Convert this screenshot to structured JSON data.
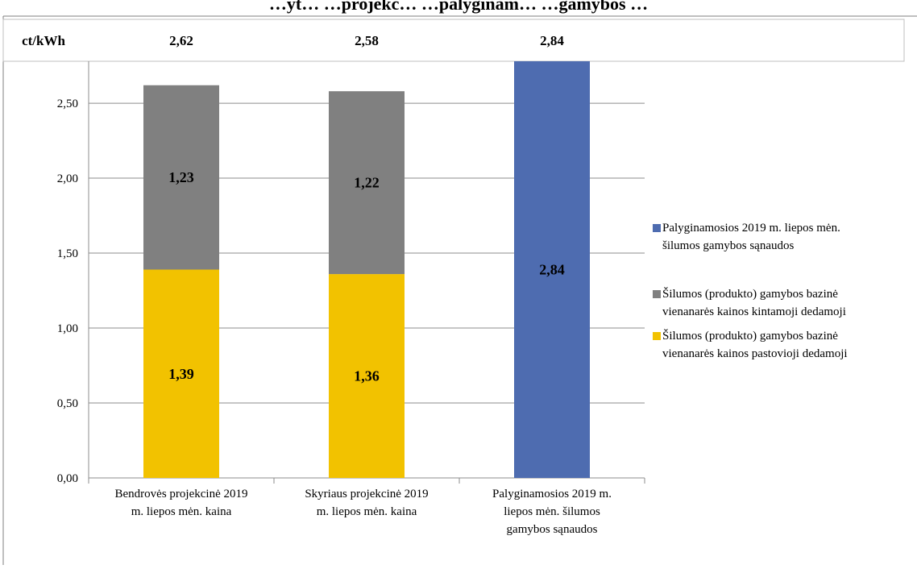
{
  "chart_data": {
    "type": "bar",
    "stacked": true,
    "title": "…yt… …projekc… …palyginam… …gamybos …",
    "unit_label": "ct/kWh",
    "totals": [
      "2,62",
      "2,58",
      "2,84"
    ],
    "categories": [
      [
        "Bendrovės projekcinė 2019",
        "m. liepos mėn. kaina"
      ],
      [
        "Skyriaus projekcinė 2019",
        "m. liepos mėn. kaina"
      ],
      [
        "Palyginamosios 2019 m.",
        "liepos mėn. šilumos",
        "gamybos sąnaudos"
      ]
    ],
    "series": [
      {
        "name": "Šilumos (produkto) gamybos bazinė vienanarės kainos pastovioji dedamoji",
        "legend_lines": [
          "Šilumos (produkto) gamybos bazinė",
          "vienanarės kainos pastovioji dedamoji"
        ],
        "color": "#F2C200",
        "values": [
          1.39,
          1.36,
          null
        ],
        "labels": [
          "1,39",
          "1,36",
          ""
        ]
      },
      {
        "name": "Šilumos (produkto) gamybos bazinė vienanarės kainos kintamoji dedamoji",
        "legend_lines": [
          "Šilumos (produkto) gamybos bazinė",
          "vienanarės kainos kintamoji dedamoji"
        ],
        "color": "#808080",
        "values": [
          1.23,
          1.22,
          null
        ],
        "labels": [
          "1,23",
          "1,22",
          ""
        ]
      },
      {
        "name": "Palyginamosios 2019 m. liepos mėn. šilumos gamybos sąnaudos",
        "legend_lines": [
          "Palyginamosios 2019 m. liepos mėn.",
          "šilumos gamybos sąnaudos"
        ],
        "color": "#4E6CB0",
        "values": [
          null,
          null,
          2.84
        ],
        "labels": [
          "",
          "",
          "2,84"
        ]
      }
    ],
    "legend_order": [
      2,
      1,
      0
    ],
    "y_ticks": [
      "0,00",
      "0,50",
      "1,00",
      "1,50",
      "2,00",
      "2,50"
    ],
    "y_tick_values": [
      0,
      0.5,
      1.0,
      1.5,
      2.0,
      2.5
    ],
    "ylim": [
      0,
      2.78
    ],
    "grid": true,
    "legend_position": "right"
  }
}
